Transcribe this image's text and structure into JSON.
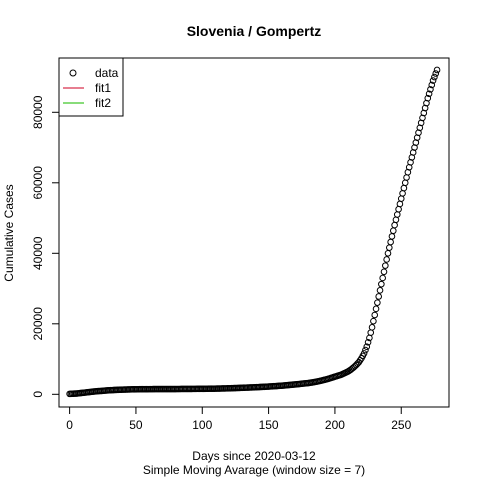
{
  "chart_data": {
    "type": "scatter",
    "title": "Slovenia / Gompertz",
    "xlabel": "Days since 2020-03-12",
    "xlabel2": "Simple Moving Avarage (window size = 7)",
    "ylabel": "Cumulative Cases",
    "xlim": [
      -8,
      286
    ],
    "ylim": [
      -3600,
      95400
    ],
    "xticks": [
      "0",
      "50",
      "100",
      "150",
      "200",
      "250"
    ],
    "xtick_values": [
      0,
      50,
      100,
      150,
      200,
      250
    ],
    "yticks": [
      "0",
      "20000",
      "40000",
      "60000",
      "80000"
    ],
    "ytick_values": [
      0,
      20000,
      40000,
      60000,
      80000
    ],
    "grid": false,
    "legend": {
      "position": "top-left",
      "entries": [
        {
          "label": "data",
          "kind": "point",
          "color": "#000000"
        },
        {
          "label": "fit1",
          "kind": "line",
          "color": "#DF536B"
        },
        {
          "label": "fit2",
          "kind": "line",
          "color": "#61D04F"
        }
      ]
    },
    "series": [
      {
        "name": "data",
        "marker": "open-circle",
        "color": "#000000",
        "points": [
          [
            0,
            120
          ],
          [
            5,
            220
          ],
          [
            10,
            420
          ],
          [
            15,
            650
          ],
          [
            20,
            850
          ],
          [
            25,
            1000
          ],
          [
            30,
            1150
          ],
          [
            35,
            1250
          ],
          [
            40,
            1330
          ],
          [
            45,
            1390
          ],
          [
            50,
            1430
          ],
          [
            60,
            1470
          ],
          [
            70,
            1490
          ],
          [
            80,
            1500
          ],
          [
            90,
            1530
          ],
          [
            100,
            1560
          ],
          [
            110,
            1610
          ],
          [
            120,
            1700
          ],
          [
            130,
            1850
          ],
          [
            140,
            2000
          ],
          [
            150,
            2200
          ],
          [
            160,
            2450
          ],
          [
            170,
            2800
          ],
          [
            180,
            3200
          ],
          [
            185,
            3500
          ],
          [
            190,
            3900
          ],
          [
            195,
            4400
          ],
          [
            200,
            5000
          ],
          [
            205,
            5600
          ],
          [
            210,
            6500
          ],
          [
            212,
            7000
          ],
          [
            214,
            7600
          ],
          [
            216,
            8300
          ],
          [
            218,
            9100
          ],
          [
            220,
            10200
          ],
          [
            222,
            11600
          ],
          [
            224,
            13500
          ],
          [
            226,
            16000
          ],
          [
            228,
            19000
          ],
          [
            230,
            22500
          ],
          [
            232,
            26000
          ],
          [
            234,
            29500
          ],
          [
            236,
            33000
          ],
          [
            238,
            36500
          ],
          [
            240,
            40000
          ],
          [
            245,
            48000
          ],
          [
            250,
            55500
          ],
          [
            255,
            63000
          ],
          [
            260,
            70000
          ],
          [
            265,
            77000
          ],
          [
            270,
            84000
          ],
          [
            274,
            89000
          ],
          [
            277,
            92000
          ]
        ]
      }
    ]
  }
}
